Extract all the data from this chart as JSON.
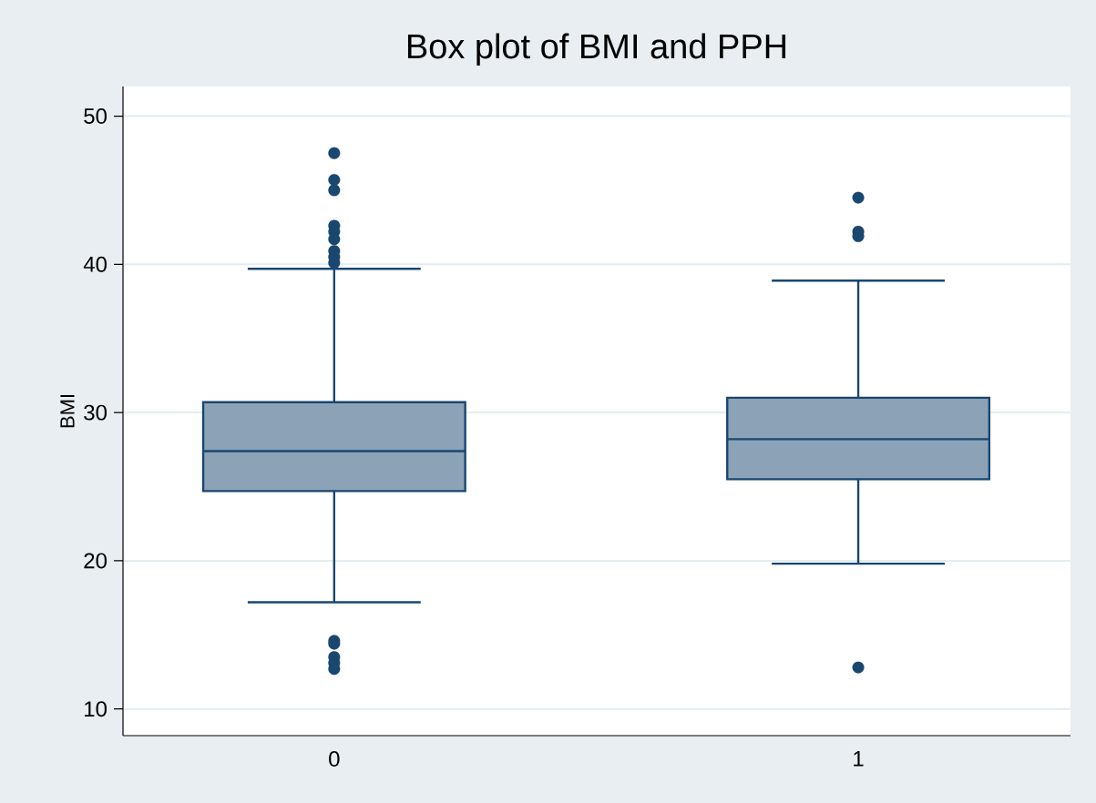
{
  "chart_data": {
    "type": "box",
    "title": "Box plot of BMI and PPH",
    "ylabel": "BMI",
    "categories": [
      "0",
      "1"
    ],
    "boxes": [
      {
        "low": 17.2,
        "q1": 24.7,
        "median": 27.4,
        "q3": 30.7,
        "high": 39.7,
        "outliers": [
          47.5,
          45.7,
          45.0,
          42.6,
          42.2,
          41.7,
          40.9,
          40.5,
          40.1,
          14.6,
          14.4,
          13.5,
          13.1,
          12.7
        ]
      },
      {
        "low": 19.8,
        "q1": 25.5,
        "median": 28.2,
        "q3": 31.0,
        "high": 38.9,
        "outliers": [
          44.5,
          42.2,
          41.9,
          12.8
        ]
      }
    ],
    "color": "#1a476f",
    "ylim": [
      8.2,
      52
    ],
    "yticks": [
      10,
      20,
      30,
      40,
      50
    ],
    "grid": "y"
  }
}
